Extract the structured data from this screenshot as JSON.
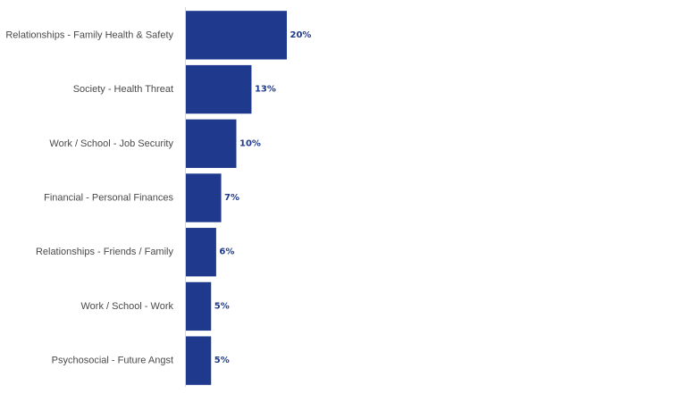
{
  "chart_data": {
    "type": "bar",
    "orientation": "horizontal",
    "categories": [
      "Relationships - Family Health & Safety",
      "Society - Health Threat",
      "Work / School - Job Security",
      "Financial - Personal Finances",
      "Relationships - Friends / Family",
      "Work / School - Work",
      "Psychosocial - Future Angst"
    ],
    "values": [
      20,
      13,
      10,
      7,
      6,
      5,
      5
    ],
    "value_labels": [
      "20%",
      "13%",
      "10%",
      "7%",
      "6%",
      "5%",
      "5%"
    ],
    "unit": "%",
    "xlim": [
      0,
      100
    ],
    "bar_color": "#1f3a8c",
    "label_color": "#1f3a8c",
    "axis_color": "#d4d8e6",
    "grid": false,
    "legend": "none"
  }
}
